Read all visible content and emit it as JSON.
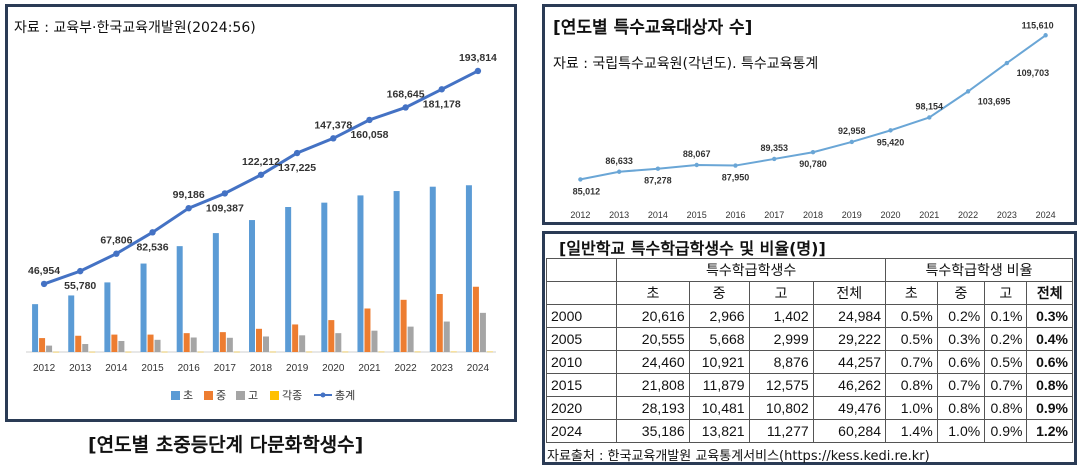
{
  "left_panel": {
    "source": "자료 : 교육부·한국교육개발원(2024:56)",
    "caption": "[연도별 초중등단계 다문화학생수]"
  },
  "top_right_panel": {
    "title": "[연도별 특수교육대상자 수]",
    "source": "자료 : 국립특수교육원(각년도). 특수교육통계"
  },
  "table_panel": {
    "title": "[일반학교 특수학급학생수 및 비율(명)]",
    "group_headers": [
      "특수학급학생수",
      "특수학급학생 비율"
    ],
    "sub_headers": [
      "초",
      "중",
      "고",
      "전체",
      "초",
      "중",
      "고",
      "전체"
    ],
    "rows": [
      {
        "year": "2000",
        "cells": [
          "20,616",
          "2,966",
          "1,402",
          "24,984",
          "0.5%",
          "0.2%",
          "0.1%",
          "0.3%"
        ]
      },
      {
        "year": "2005",
        "cells": [
          "20,555",
          "5,668",
          "2,999",
          "29,222",
          "0.5%",
          "0.3%",
          "0.2%",
          "0.4%"
        ]
      },
      {
        "year": "2010",
        "cells": [
          "24,460",
          "10,921",
          "8,876",
          "44,257",
          "0.7%",
          "0.6%",
          "0.5%",
          "0.6%"
        ]
      },
      {
        "year": "2015",
        "cells": [
          "21,808",
          "11,879",
          "12,575",
          "46,262",
          "0.8%",
          "0.7%",
          "0.7%",
          "0.8%"
        ]
      },
      {
        "year": "2020",
        "cells": [
          "28,193",
          "10,481",
          "10,802",
          "49,476",
          "1.0%",
          "0.8%",
          "0.8%",
          "0.9%"
        ]
      },
      {
        "year": "2024",
        "cells": [
          "35,186",
          "13,821",
          "11,277",
          "60,284",
          "1.4%",
          "1.0%",
          "0.9%",
          "1.2%"
        ]
      }
    ],
    "footer": "자료출처 : 한국교육개발원 교육통계서비스(https://kess.kedi.re.kr)"
  },
  "colors": {
    "elementary": "#5b9bd5",
    "middle": "#ed7d31",
    "high": "#a5a5a5",
    "misc": "#ffc000",
    "total_line": "#4472c4",
    "special_line": "#6aa6d6",
    "panel_border": "#2a3b55"
  },
  "chart_data": [
    {
      "type": "bar",
      "title": "",
      "categories": [
        "2012",
        "2013",
        "2014",
        "2015",
        "2016",
        "2017",
        "2018",
        "2019",
        "2020",
        "2021",
        "2022",
        "2023",
        "2024"
      ],
      "legend_position": "bottom",
      "ylim": [
        0,
        200000
      ],
      "series": [
        {
          "name": "초",
          "kind": "bar",
          "values": [
            33000,
            39000,
            48000,
            61000,
            73000,
            82000,
            91000,
            100000,
            103000,
            108000,
            111000,
            114000,
            115000
          ]
        },
        {
          "name": "중",
          "kind": "bar",
          "values": [
            9600,
            11200,
            12000,
            12000,
            13000,
            13700,
            16000,
            19000,
            22000,
            30000,
            36000,
            40000,
            45000
          ]
        },
        {
          "name": "고",
          "kind": "bar",
          "values": [
            4400,
            5500,
            7600,
            8400,
            10000,
            9800,
            10700,
            11500,
            13000,
            14700,
            17500,
            21000,
            27000
          ]
        },
        {
          "name": "각종",
          "kind": "bar",
          "values": [
            130,
            140,
            150,
            160,
            170,
            170,
            180,
            190,
            200,
            220,
            230,
            240,
            250
          ]
        },
        {
          "name": "총계",
          "kind": "line",
          "values": [
            46954,
            55780,
            67806,
            82536,
            99186,
            109387,
            122212,
            137225,
            147378,
            160058,
            168645,
            181178,
            193814
          ],
          "labels": [
            "46,954",
            "55,780",
            "67,806",
            "82,536",
            "99,186",
            "109,387",
            "122,212",
            "137,225",
            "147,378",
            "160,058",
            "168,645",
            "181,178",
            "193,814"
          ]
        }
      ]
    },
    {
      "type": "line",
      "title": "[연도별 특수교육대상자 수]",
      "categories": [
        "2012",
        "2013",
        "2014",
        "2015",
        "2016",
        "2017",
        "2018",
        "2019",
        "2020",
        "2021",
        "2022",
        "2023",
        "2024"
      ],
      "ylim": [
        80000,
        118000
      ],
      "series": [
        {
          "values": [
            85012,
            86633,
            87278,
            88067,
            87950,
            89353,
            90780,
            92958,
            95420,
            98154,
            103695,
            109703,
            115610
          ],
          "labels": [
            "85,012",
            "86,633",
            "87,278",
            "88,067",
            "87,950",
            "89,353",
            "90,780",
            "92,958",
            "95,420",
            "98,154",
            "103,695",
            "109,703",
            "115,610"
          ]
        }
      ]
    }
  ]
}
